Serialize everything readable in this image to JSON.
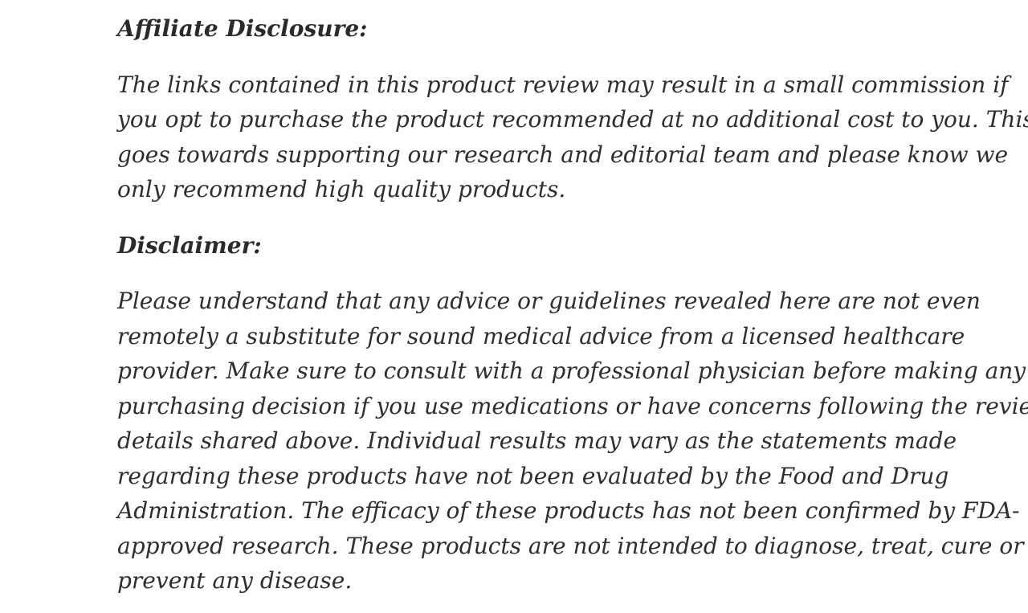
{
  "page": {
    "background_color": "#ffffff",
    "text_color": "#2e2e2e"
  },
  "content": {
    "sections": [
      {
        "type": "heading",
        "text": "Affiliate Disclosure:"
      },
      {
        "type": "paragraph",
        "lines": [
          "The links contained in this product review may result in a small commission if",
          "you opt to purchase the product recommended at no additional cost to you. This",
          "goes towards supporting our research and editorial team and please know we",
          "only recommend high quality products."
        ]
      },
      {
        "type": "heading",
        "text": "Disclaimer:"
      },
      {
        "type": "paragraph",
        "lines": [
          "Please understand that any advice or guidelines revealed here are not even",
          "remotely a substitute for sound medical advice from a licensed healthcare",
          "provider. Make sure to consult with a professional physician before making any",
          "purchasing decision if you use medications or have concerns following the review",
          "details shared above. Individual results may vary as the statements made",
          "regarding these products have not been evaluated by the Food and Drug",
          "Administration. The efficacy of these products has not been confirmed by FDA-",
          "approved research. These products are not intended to diagnose, treat, cure or",
          "prevent any disease."
        ]
      }
    ]
  }
}
